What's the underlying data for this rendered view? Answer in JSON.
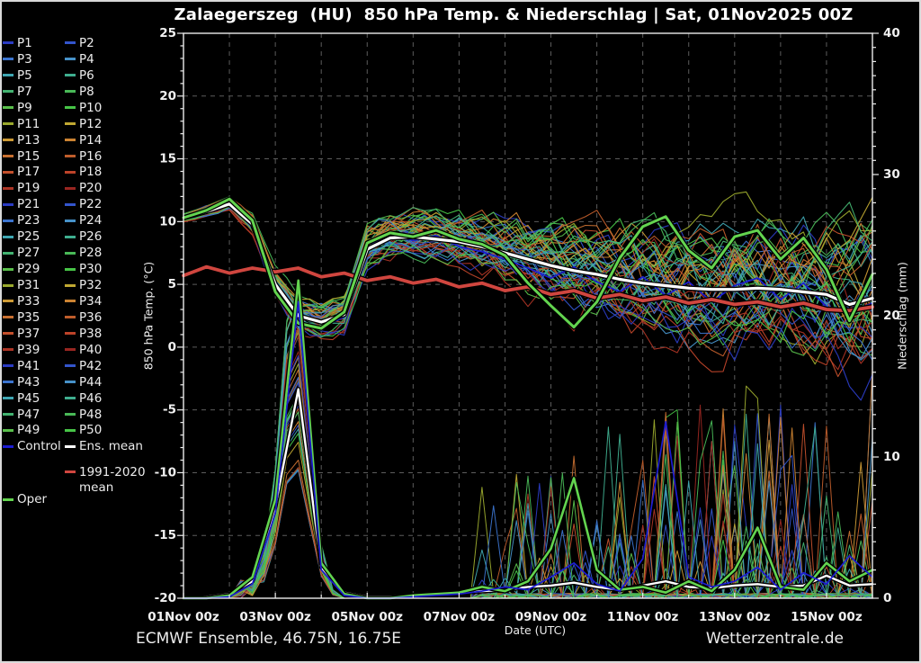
{
  "page": {
    "background": "#000000",
    "border_color": "#d9d9d9"
  },
  "footer": {
    "model_info": "ECMWF Ensemble, 46.75N, 16.75E",
    "credit": "Wetterzentrale.de"
  },
  "chart_data": {
    "type": "line",
    "title": "Zalaegerszeg  (HU)  850 hPa Temp. & Niederschlag | Sat, 01Nov2025 00Z",
    "x_axis": {
      "label": "Date (UTC)",
      "tick_labels": [
        "01Nov 00z",
        "03Nov 00z",
        "05Nov 00z",
        "07Nov 00z",
        "09Nov 00z",
        "11Nov 00z",
        "13Nov 00z",
        "15Nov 00z"
      ],
      "start_hour": 0,
      "end_hour": 360,
      "label_tick_hours": 48,
      "minor_tick_hours": 24
    },
    "y_temp": {
      "label": "850 hPa Temp. (°C)",
      "min": -20,
      "max": 25,
      "tick_labels": [
        "25",
        "20",
        "15",
        "10",
        "5",
        "0",
        "-5",
        "-10",
        "-15",
        "-20"
      ],
      "major_tick": 5,
      "minor_tick": 1
    },
    "y_precip": {
      "label": "Niederschlag (mm)",
      "min": 0,
      "max": 40,
      "tick_labels": [
        "40",
        "30",
        "20",
        "10",
        "0"
      ],
      "major_tick": 10,
      "minor_tick": 1
    },
    "grid": {
      "show": true,
      "color": "#5c5c5c"
    },
    "sample_step_hours": 12,
    "series": {
      "climate_mean_temp": {
        "label": "1991-2020 mean",
        "axis": "temp",
        "color": "#d0463f",
        "width": 3.8,
        "values": [
          5.7,
          6.4,
          5.9,
          6.3,
          6.0,
          6.3,
          5.6,
          5.9,
          5.3,
          5.6,
          5.1,
          5.4,
          4.8,
          5.1,
          4.5,
          4.8,
          4.2,
          4.5,
          3.9,
          4.2,
          3.7,
          4.0,
          3.5,
          3.8,
          3.4,
          3.6,
          3.2,
          3.5,
          3.0,
          2.9,
          3.2
        ]
      },
      "ens_mean_temp": {
        "label": "Ens. mean",
        "axis": "temp",
        "color": "#ffffff",
        "width": 3.2,
        "values": [
          10.3,
          10.8,
          11.4,
          9.8,
          5.0,
          2.5,
          2.0,
          2.6,
          7.8,
          8.7,
          8.8,
          8.6,
          8.4,
          8.0,
          7.5,
          7.0,
          6.5,
          6.1,
          5.8,
          5.4,
          5.1,
          4.9,
          4.7,
          4.6,
          4.6,
          4.7,
          4.6,
          4.4,
          4.2,
          3.4,
          3.9
        ]
      },
      "oper_temp": {
        "label": "Oper",
        "axis": "temp",
        "color": "#63d44f",
        "width": 3.0,
        "values": [
          10.3,
          10.9,
          11.8,
          10.1,
          4.4,
          1.9,
          1.5,
          2.8,
          8.3,
          9.1,
          8.8,
          9.3,
          8.6,
          8.2,
          7.3,
          5.1,
          3.3,
          1.6,
          3.6,
          7.1,
          9.6,
          10.4,
          7.7,
          6.3,
          8.8,
          9.3,
          7.0,
          8.7,
          6.2,
          2.1,
          5.8
        ]
      },
      "control_temp": {
        "label": "Control",
        "axis": "temp",
        "color": "#1c1cd2",
        "width": 1.7,
        "values": [
          10.2,
          10.9,
          11.6,
          10.0,
          4.6,
          2.0,
          1.6,
          2.4,
          7.9,
          9.0,
          8.5,
          8.9,
          8.0,
          7.6,
          7.0,
          6.3,
          5.5,
          6.4,
          5.2,
          4.4,
          5.6,
          4.1,
          5.2,
          3.6,
          4.9,
          5.5,
          3.8,
          5.1,
          3.2,
          2.8,
          3.5
        ]
      },
      "ens_mean_precip": {
        "label": "Ens. mean",
        "axis": "precip",
        "color": "#ffffff",
        "width": 2.4,
        "values": [
          0,
          0.1,
          0.3,
          1.2,
          6.5,
          14.8,
          2.2,
          0.4,
          0.1,
          0.1,
          0.2,
          0.3,
          0.4,
          0.5,
          0.6,
          0.8,
          0.9,
          1.1,
          0.8,
          0.6,
          0.9,
          1.2,
          0.8,
          0.7,
          0.9,
          1.0,
          0.8,
          0.9,
          1.6,
          0.9,
          1.0
        ]
      },
      "oper_precip": {
        "label": "Oper",
        "axis": "precip",
        "color": "#63d44f",
        "width": 2.6,
        "values": [
          0,
          0,
          0.2,
          1.5,
          7.0,
          22.5,
          2.5,
          0.3,
          0,
          0,
          0.2,
          0.3,
          0.4,
          0.8,
          0.5,
          1.2,
          3.5,
          8.5,
          2.0,
          0.6,
          0.8,
          0.4,
          1.2,
          0.5,
          2.0,
          5.0,
          0.8,
          0.6,
          2.5,
          1.2,
          2.0
        ]
      },
      "control_precip": {
        "label": "Control",
        "axis": "precip",
        "color": "#1c1cd2",
        "width": 1.7,
        "values": [
          0,
          0,
          0.1,
          1.0,
          6.0,
          21.0,
          2.0,
          0.2,
          0,
          0,
          0.1,
          0.2,
          0.3,
          0.5,
          0.8,
          0.6,
          1.5,
          2.5,
          1.0,
          0.5,
          2.8,
          12.5,
          1.5,
          0.8,
          1.2,
          2.2,
          0.6,
          1.8,
          1.0,
          3.0,
          1.5
        ]
      }
    },
    "ensemble": {
      "member_count": 50,
      "labels": [
        "P1",
        "P2",
        "P3",
        "P4",
        "P5",
        "P6",
        "P7",
        "P8",
        "P9",
        "P10",
        "P11",
        "P12",
        "P13",
        "P14",
        "P15",
        "P16",
        "P17",
        "P18",
        "P19",
        "P20",
        "P21",
        "P22",
        "P23",
        "P24",
        "P25",
        "P26",
        "P27",
        "P28",
        "P29",
        "P30",
        "P31",
        "P32",
        "P33",
        "P34",
        "P35",
        "P36",
        "P37",
        "P38",
        "P39",
        "P40",
        "P41",
        "P42",
        "P43",
        "P44",
        "P45",
        "P46",
        "P47",
        "P48",
        "P49",
        "P50"
      ],
      "palette": [
        "#2b3cc4",
        "#3355cc",
        "#3b74cf",
        "#4792c9",
        "#3fa6b2",
        "#3fae8f",
        "#43b371",
        "#49b957",
        "#59bf4b",
        "#47c447",
        "#9aa92d",
        "#c0a832",
        "#cd9a35",
        "#cc8332",
        "#c76f30",
        "#bf5d2b",
        "#c4502c",
        "#bd4329",
        "#ac3425",
        "#992621"
      ],
      "line_width": 1.1,
      "temp_spread": [
        0.25,
        0.3,
        0.35,
        0.5,
        0.8,
        0.9,
        0.9,
        1.0,
        1.2,
        1.2,
        1.3,
        1.4,
        1.5,
        1.6,
        1.8,
        2.0,
        2.2,
        2.4,
        2.6,
        2.7,
        2.9,
        3.0,
        3.1,
        3.2,
        3.3,
        3.4,
        3.5,
        3.6,
        3.7,
        3.8,
        4.0
      ],
      "precip_event": {
        "center_hour": 58,
        "peak_range_mm": [
          9,
          23
        ]
      }
    }
  }
}
